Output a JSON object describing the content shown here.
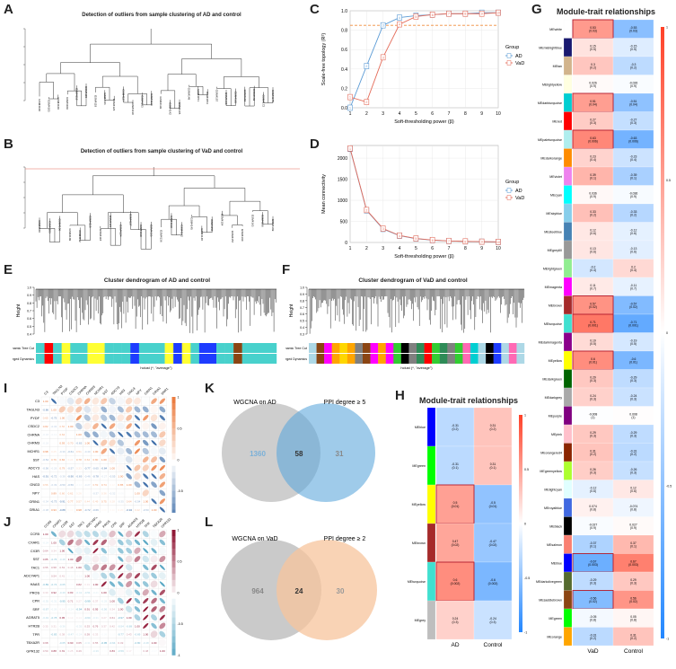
{
  "figure": {
    "panel_labels": [
      "A",
      "B",
      "C",
      "D",
      "E",
      "F",
      "G",
      "H",
      "I",
      "J",
      "K",
      "L"
    ]
  },
  "panel_a": {
    "title": "Detection of outliers from sample clustering of AD and control"
  },
  "panel_b": {
    "title": "Detection of outliers from sample clustering of VaD and control"
  },
  "chart_data": [
    {
      "panel": "C",
      "type": "line",
      "x": [
        1,
        2,
        3,
        4,
        5,
        6,
        7,
        8,
        9,
        10
      ],
      "series": [
        {
          "name": "AD",
          "color": "#5b9bd5",
          "values": [
            0.0,
            0.43,
            0.85,
            0.93,
            0.95,
            0.96,
            0.97,
            0.97,
            0.98,
            0.98
          ]
        },
        {
          "name": "VaD",
          "color": "#e46c5a",
          "values": [
            0.11,
            0.06,
            0.52,
            0.86,
            0.94,
            0.96,
            0.97,
            0.97,
            0.97,
            0.98
          ]
        }
      ],
      "threshold": 0.85,
      "xlabel": "Soft-thresholding power (β)",
      "ylabel": "Scale-free topology (R²)",
      "xticks": [
        "1",
        "2",
        "3",
        "4",
        "5",
        "6",
        "7",
        "8",
        "9",
        "10"
      ],
      "yticks": [
        "0.0",
        "0.2",
        "0.4",
        "0.6",
        "0.8",
        "1.0"
      ],
      "ylim": [
        0,
        1
      ],
      "legend_title": "Group"
    },
    {
      "panel": "D",
      "type": "line",
      "x": [
        1,
        2,
        3,
        4,
        5,
        6,
        7,
        8,
        9,
        10
      ],
      "series": [
        {
          "name": "AD",
          "color": "#5b9bd5",
          "values": [
            2220,
            760,
            320,
            160,
            90,
            55,
            35,
            25,
            18,
            13
          ]
        },
        {
          "name": "VaD",
          "color": "#e46c5a",
          "values": [
            2230,
            770,
            330,
            165,
            95,
            58,
            37,
            26,
            19,
            14
          ]
        }
      ],
      "xlabel": "Soft-thresholding power (β)",
      "ylabel": "Mean connectivity",
      "xticks": [
        "1",
        "2",
        "3",
        "4",
        "5",
        "6",
        "7",
        "8",
        "9",
        "10"
      ],
      "yticks": [
        "0",
        "500",
        "1000",
        "1500",
        "2000"
      ],
      "ylim": [
        0,
        2300
      ],
      "legend_title": "Group"
    }
  ],
  "panel_c": {
    "legend_title": "Group",
    "legend": [
      "AD",
      "VaD"
    ],
    "xlabel": "Soft-thresholding power (β)",
    "ylabel": "Scale-free topology (R²)"
  },
  "panel_d": {
    "legend_title": "Group",
    "legend": [
      "AD",
      "VaD"
    ],
    "xlabel": "Soft-thresholding power (β)",
    "ylabel": "Mean connectivity"
  },
  "panel_e": {
    "title": "Cluster dendrogram of AD and control",
    "ylabel": "Height",
    "yticks": [
      "0.4",
      "0.5",
      "0.6",
      "0.7",
      "0.8",
      "0.9",
      "1.0"
    ],
    "row1": "Dynamic Tree Cut",
    "row2": "Merged Dynamics",
    "xlabel": "hclust (*, \"average\")",
    "colors": [
      "#48d1cc",
      "#1e3cff",
      "#48d1cc",
      "#ffff33",
      "#48d1cc",
      "#8b4513",
      "#48d1cc",
      "#ff0000",
      "#48d1cc"
    ]
  },
  "panel_f": {
    "title": "Cluster dendrogram of VaD and control",
    "ylabel": "Height",
    "yticks": [
      "0.3",
      "0.4",
      "0.5",
      "0.6",
      "0.7",
      "0.8",
      "0.9",
      "1.0"
    ],
    "row1": "Dynamic Tree Cut",
    "row2": "Merged Dynamics",
    "xlabel": "hclust (*, \"average\")",
    "colors": [
      "#40e0d0",
      "#1e3cff",
      "#32cd32",
      "#ff00ff",
      "#ff0000",
      "#000000",
      "#ffd700",
      "#add8e6",
      "#8b4513",
      "#ff69b4",
      "#40e0d0",
      "#ffa500",
      "#00ced1",
      "#9370db",
      "#2e8b57",
      "#808080"
    ]
  },
  "panel_g": {
    "title": "Module-trait relationships",
    "columns": [
      "VaD",
      "Control"
    ],
    "scale": [
      "1",
      "0.5",
      "0",
      "-0.5",
      "-1"
    ],
    "rows": [
      {
        "name": "MEwhite",
        "color": "#ffffff",
        "vad": "0.53\n(0.03)",
        "ctl": "-0.53\n(0.03)",
        "v": 0.53
      },
      {
        "name": "MEmidnightblue",
        "color": "#191970",
        "vad": "0.15\n(0.5)",
        "ctl": "-0.15\n(0.5)",
        "v": 0.15
      },
      {
        "name": "MEtan",
        "color": "#d2b48c",
        "vad": "0.3\n(0.2)",
        "ctl": "-0.3\n(0.2)",
        "v": 0.3
      },
      {
        "name": "MElightyellow",
        "color": "#ffffe0",
        "vad": "0.026\n(0.9)",
        "ctl": "-0.026\n(0.9)",
        "v": 0.026
      },
      {
        "name": "MEdarkturquoise",
        "color": "#00ced1",
        "vad": "0.51\n(0.04)",
        "ctl": "-0.51\n(0.04)",
        "v": 0.51
      },
      {
        "name": "MEred",
        "color": "#ff0000",
        "vad": "0.27\n(0.3)",
        "ctl": "-0.27\n(0.3)",
        "v": 0.27
      },
      {
        "name": "MEpaleturquoise",
        "color": "#afeeee",
        "vad": "0.63\n(0.006)",
        "ctl": "-0.63\n(0.006)",
        "v": 0.63
      },
      {
        "name": "MEdarkorange",
        "color": "#ff8c00",
        "vad": "0.23\n(0.4)",
        "ctl": "-0.23\n(0.4)",
        "v": 0.23
      },
      {
        "name": "MEviolet",
        "color": "#ee82ee",
        "vad": "0.39\n(0.1)",
        "ctl": "-0.39\n(0.1)",
        "v": 0.39
      },
      {
        "name": "MEcyan",
        "color": "#00ffff",
        "vad": "0.036\n(0.9)",
        "ctl": "-0.036\n(0.9)",
        "v": 0.036
      },
      {
        "name": "MEskyblue",
        "color": "#87ceeb",
        "vad": "0.33\n(0.2)",
        "ctl": "-0.33\n(0.2)",
        "v": 0.33
      },
      {
        "name": "MEsteelblue",
        "color": "#4682b4",
        "vad": "0.12\n(0.6)",
        "ctl": "-0.12\n(0.6)",
        "v": 0.12
      },
      {
        "name": "MEgrey60",
        "color": "#999999",
        "vad": "0.13\n(0.6)",
        "ctl": "-0.13\n(0.6)",
        "v": 0.13
      },
      {
        "name": "MElightgreen",
        "color": "#90ee90",
        "vad": "-0.2\n(0.4)",
        "ctl": "0.2\n(0.4)",
        "v": -0.2
      },
      {
        "name": "MEmagenta",
        "color": "#ff00ff",
        "vad": "0.11\n(0.7)",
        "ctl": "-0.11\n(0.7)",
        "v": 0.11
      },
      {
        "name": "MEbrown",
        "color": "#a52a2a",
        "vad": "0.57\n(0.02)",
        "ctl": "-0.57\n(0.02)",
        "v": 0.57
      },
      {
        "name": "MEturquoise",
        "color": "#40e0d0",
        "vad": "0.71\n(0.001)",
        "ctl": "-0.71\n(0.001)",
        "v": 0.71
      },
      {
        "name": "MEdarkmagenta",
        "color": "#8b008b",
        "vad": "0.19\n(0.5)",
        "ctl": "-0.19\n(0.5)",
        "v": 0.19
      },
      {
        "name": "MEyellow",
        "color": "#ffff00",
        "vad": "0.6\n(0.01)",
        "ctl": "-0.6\n(0.01)",
        "v": 0.6
      },
      {
        "name": "MEdarkgreen",
        "color": "#006400",
        "vad": "0.29\n(0.3)",
        "ctl": "-0.29\n(0.3)",
        "v": 0.29
      },
      {
        "name": "MEdarkgrey",
        "color": "#a9a9a9",
        "vad": "0.24\n(0.3)",
        "ctl": "-0.24\n(0.3)",
        "v": 0.24
      },
      {
        "name": "MEpurple",
        "color": "#800080",
        "vad": "-0.008\n(1)",
        "ctl": "0.008\n(1)",
        "v": -0.008
      },
      {
        "name": "MEpink",
        "color": "#ffc0cb",
        "vad": "0.29\n(0.3)",
        "ctl": "-0.29\n(0.3)",
        "v": 0.29
      },
      {
        "name": "MEorangered4",
        "color": "#8b2500",
        "vad": "0.31\n(0.2)",
        "ctl": "-0.31\n(0.2)",
        "v": 0.31
      },
      {
        "name": "MEgreenyellow",
        "color": "#adff2f",
        "vad": "0.26\n(0.3)",
        "ctl": "-0.26\n(0.3)",
        "v": 0.26
      },
      {
        "name": "MElightcyan",
        "color": "#e0ffff",
        "vad": "-0.12\n(0.6)",
        "ctl": "0.12\n(0.6)",
        "v": -0.12
      },
      {
        "name": "MEroyalblue",
        "color": "#4169e1",
        "vad": "0.074\n(0.8)",
        "ctl": "-0.074\n(0.8)",
        "v": 0.074
      },
      {
        "name": "MEblack",
        "color": "#000000",
        "vad": "-0.027\n(0.9)",
        "ctl": "0.027\n(0.9)",
        "v": -0.027
      },
      {
        "name": "MEsalmon",
        "color": "#fa8072",
        "vad": "-0.37\n(0.1)",
        "ctl": "0.37\n(0.1)",
        "v": -0.37
      },
      {
        "name": "MEblue",
        "color": "#0000ff",
        "vad": "-0.67\n(0.003)",
        "ctl": "0.67\n(0.003)",
        "v": -0.67
      },
      {
        "name": "MEdarkolivegreen",
        "color": "#556b2f",
        "vad": "-0.29\n(0.3)",
        "ctl": "0.29\n(0.3)",
        "v": -0.29
      },
      {
        "name": "MEsaddlebrown",
        "color": "#8b4513",
        "vad": "-0.56\n(0.02)",
        "ctl": "0.56\n(0.02)",
        "v": -0.56
      },
      {
        "name": "MEgreen",
        "color": "#00ff00",
        "vad": "-0.05\n(0.8)",
        "ctl": "0.05\n(0.8)",
        "v": -0.05
      },
      {
        "name": "MEorange",
        "color": "#ffa500",
        "vad": "-0.31\n(0.2)",
        "ctl": "0.31\n(0.2)",
        "v": -0.31
      }
    ]
  },
  "panel_h": {
    "title": "Module-trait relationships",
    "columns": [
      "AD",
      "Control"
    ],
    "scale": [
      "1",
      "0.5",
      "0",
      "-0.5",
      "-1"
    ],
    "rows": [
      {
        "name": "MEblue",
        "color": "#0000ff",
        "ad": "-0.31\n(0.2)",
        "ctl": "0.31\n(0.2)",
        "v": -0.31
      },
      {
        "name": "MEgreen",
        "color": "#00ff00",
        "ad": "-0.31\n(0.1)",
        "ctl": "0.31\n(0.1)",
        "v": -0.31
      },
      {
        "name": "MEyellow",
        "color": "#ffff00",
        "ad": "0.5\n(0.01)",
        "ctl": "-0.5\n(0.01)",
        "v": 0.5
      },
      {
        "name": "MEbrown",
        "color": "#a52a2a",
        "ad": "0.47\n(0.02)",
        "ctl": "-0.47\n(0.02)",
        "v": 0.47
      },
      {
        "name": "MEturquoise",
        "color": "#40e0d0",
        "ad": "0.6\n(0.002)",
        "ctl": "-0.6\n(0.002)",
        "v": 0.6
      },
      {
        "name": "MEgrey",
        "color": "#bebebe",
        "ad": "0.24\n(0.3)",
        "ctl": "-0.24\n(0.3)",
        "v": 0.24
      }
    ]
  },
  "panel_i": {
    "genes": [
      "C3",
      "TAGLN3",
      "PYDF",
      "CSDC2",
      "CHRNA",
      "CHRM3",
      "MCHR1",
      "SST",
      "ADCY3",
      "HAS",
      "GNG3",
      "NPY",
      "GRIN1",
      "GRIA1",
      "SNR1"
    ]
  },
  "panel_j": {
    "genes": [
      "CCR5",
      "CXAR1",
      "CX3R",
      "SST",
      "TAC1",
      "ADCYAP1",
      "HAAS",
      "PROS",
      "CPR",
      "SRF",
      "AGRAT5",
      "HTR2B",
      "TPR",
      "TBXA2R",
      "GPR132"
    ]
  },
  "panel_k": {
    "left_label": "WGCNA on AD",
    "right_label": "PPI degree ≥ 5",
    "left_only": "1360",
    "overlap": "58",
    "right_only": "31"
  },
  "panel_l": {
    "left_label": "WGCNA on VaD",
    "right_label": "PPI degree ≥ 2",
    "left_only": "964",
    "overlap": "24",
    "right_only": "30"
  }
}
